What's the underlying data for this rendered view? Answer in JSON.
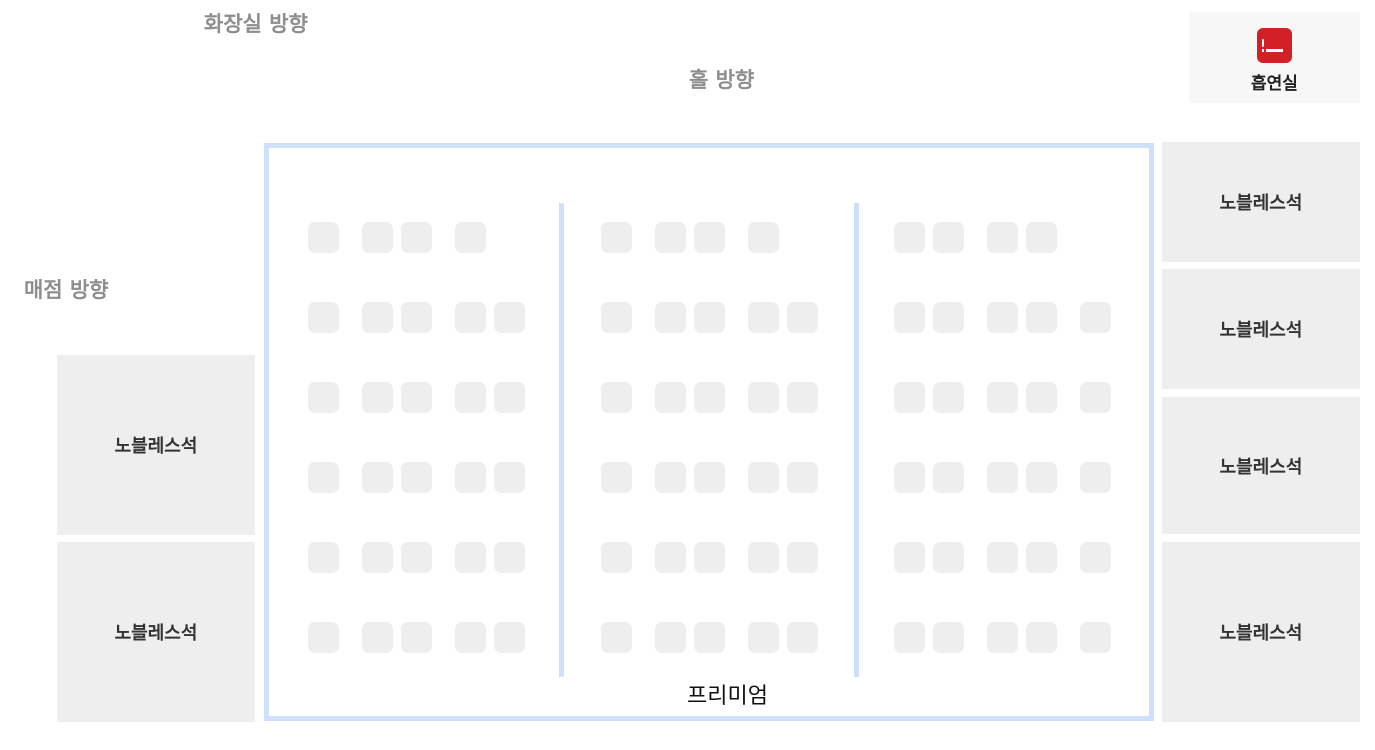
{
  "directions": {
    "restroom": "화장실 방향",
    "hall": "홀 방향",
    "store": "매점 방향"
  },
  "smoking_room": {
    "label": "흡연실",
    "icon": "cigarette-icon",
    "icon_color": "#d32027"
  },
  "noble_seat_label": "노블레스석",
  "premium_label": "프리미엄",
  "colors": {
    "seat": "#eeeeee",
    "premium_border": "#cfe0fa",
    "direction_text": "#8e8e8e"
  }
}
